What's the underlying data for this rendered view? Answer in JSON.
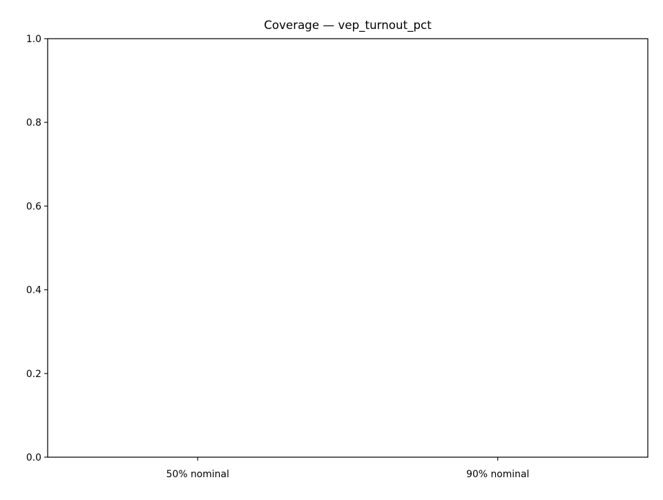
{
  "chart_data": {
    "type": "bar",
    "title": "Coverage — vep_turnout_pct",
    "xlabel": "",
    "ylabel": "",
    "categories": [
      "50% nominal",
      "90% nominal"
    ],
    "series": [],
    "ylim": [
      0,
      1.0
    ],
    "yticks": [
      "0.0",
      "0.2",
      "0.4",
      "0.6",
      "0.8",
      "1.0"
    ],
    "grid": false,
    "legend": "none"
  },
  "colors": {
    "axes": "#000000",
    "background": "#ffffff"
  }
}
